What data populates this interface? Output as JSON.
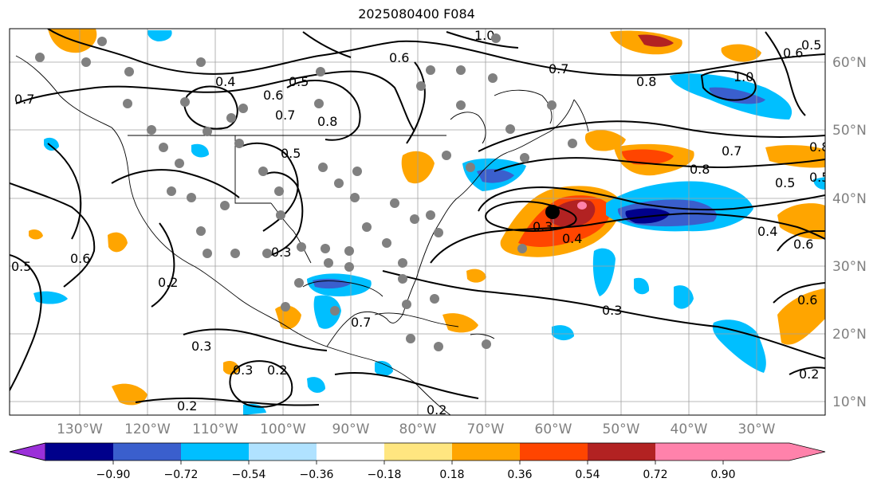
{
  "title": "2025080400 F084",
  "longitude_labels": [
    "130°W",
    "120°W",
    "110°W",
    "100°W",
    "90°W",
    "80°W",
    "70°W",
    "60°W",
    "50°W",
    "40°W",
    "30°W"
  ],
  "latitude_labels": [
    "60°N",
    "50°N",
    "40°N",
    "30°N",
    "20°N",
    "10°N"
  ],
  "colorbar": {
    "colors": [
      "#9b30d9",
      "#00008b",
      "#3a5fcd",
      "#00bfff",
      "#b0e2ff",
      "#ffffff",
      "#ffe680",
      "#ffa500",
      "#ff4500",
      "#b22222",
      "#ff82ab"
    ],
    "tick_labels": [
      "−0.90",
      "−0.72",
      "−0.54",
      "−0.36",
      "−0.18",
      "0.18",
      "0.36",
      "0.54",
      "0.72",
      "0.90"
    ]
  },
  "contour_labels": [
    "0.4",
    "0.5",
    "0.6",
    "0.7",
    "0.8",
    "1.0",
    "0.6",
    "0.7",
    "0.8",
    "1.0",
    "0.5",
    "0.6",
    "0.8",
    "0.3",
    "0.4",
    "0.5",
    "0.7",
    "0.8",
    "0.5",
    "0.6",
    "0.2",
    "0.3",
    "0.2",
    "0.3",
    "0.7",
    "0.3",
    "0.2",
    "0.2",
    "0.6",
    "0.7",
    "0.5",
    "0.5",
    "0.6",
    "0.4",
    "0.3",
    "0.2"
  ],
  "colors": {
    "orange": "#ffa500",
    "red": "#ff4500",
    "dark_red": "#b22222",
    "pink": "#ff82ab",
    "light_blue": "#00bfff",
    "medium_blue": "#3a5fcd",
    "navy": "#00008b",
    "station_dot": "#808080",
    "marker": "#000000"
  }
}
